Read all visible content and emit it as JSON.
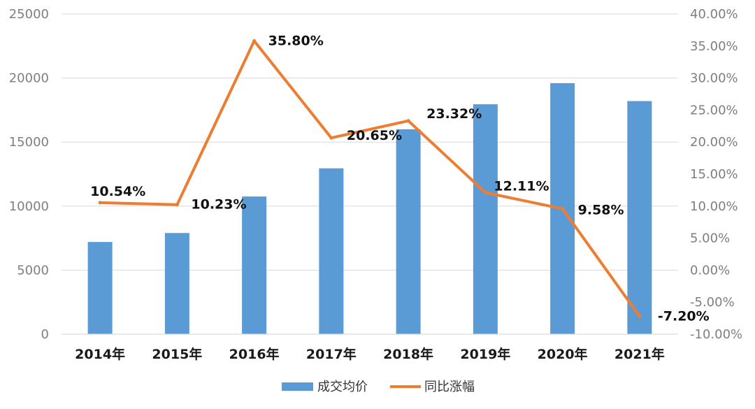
{
  "chart_data": {
    "type": "bar+line",
    "title": "",
    "categories": [
      "2014年",
      "2015年",
      "2016年",
      "2017年",
      "2018年",
      "2019年",
      "2020年",
      "2021年"
    ],
    "series": [
      {
        "name": "成交均价",
        "type": "bar",
        "axis": "left",
        "color": "#5b9bd5",
        "values": [
          7200,
          7900,
          10750,
          12950,
          16000,
          17950,
          19600,
          18200
        ]
      },
      {
        "name": "同比涨幅",
        "type": "line",
        "axis": "right",
        "color": "#ed7d31",
        "values": [
          10.54,
          10.23,
          35.8,
          20.65,
          23.32,
          12.11,
          9.58,
          -7.2
        ],
        "labels": [
          "10.54%",
          "10.23%",
          "35.80%",
          "20.65%",
          "23.32%",
          "12.11%",
          "9.58%",
          "-7.20%"
        ]
      }
    ],
    "y_left": {
      "min": 0,
      "max": 25000,
      "ticks": [
        0,
        5000,
        10000,
        15000,
        20000,
        25000
      ],
      "tick_labels": [
        "0",
        "5000",
        "10000",
        "15000",
        "20000",
        "25000"
      ]
    },
    "y_right": {
      "min": -10,
      "max": 40,
      "ticks": [
        -10,
        -5,
        0,
        5,
        10,
        15,
        20,
        25,
        30,
        35,
        40
      ],
      "tick_labels": [
        "-10.00%",
        "-5.00%",
        "0.00%",
        "5.00%",
        "10.00%",
        "15.00%",
        "20.00%",
        "25.00%",
        "30.00%",
        "35.00%",
        "40.00%"
      ]
    },
    "grid": true,
    "legend": {
      "position": "bottom",
      "items": [
        "成交均价",
        "同比涨幅"
      ]
    }
  }
}
